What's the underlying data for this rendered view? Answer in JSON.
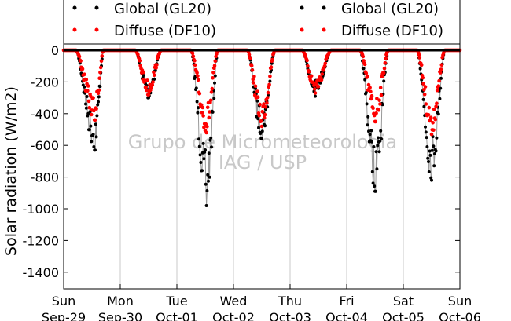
{
  "chart_data": {
    "type": "scatter",
    "title": "",
    "xlabel": "",
    "ylabel": "Solar radiation (W/m2)",
    "ylim": [
      -1500,
      0
    ],
    "y_ticks": [
      0,
      -200,
      -400,
      -600,
      -800,
      -1000,
      -1200,
      -1400
    ],
    "x_ticks": [
      {
        "day": "Sun",
        "date": "Sep-29"
      },
      {
        "day": "Mon",
        "date": "Sep-30"
      },
      {
        "day": "Tue",
        "date": "Oct-01"
      },
      {
        "day": "Wed",
        "date": "Oct-02"
      },
      {
        "day": "Thu",
        "date": "Oct-03"
      },
      {
        "day": "Fri",
        "date": "Oct-04"
      },
      {
        "day": "Sat",
        "date": "Oct-05"
      },
      {
        "day": "Sun",
        "date": "Oct-06"
      }
    ],
    "grid": "vertical",
    "legend_position": "top",
    "series": [
      {
        "name": "Global (GL20)",
        "color": "#000000",
        "daily_minimum": [
          -630,
          -300,
          -980,
          -560,
          -290,
          -890,
          -820
        ]
      },
      {
        "name": "Diffuse (DF10)",
        "color": "#ff0000",
        "daily_minimum": [
          -440,
          -280,
          -520,
          -480,
          -270,
          -450,
          -530
        ]
      }
    ],
    "watermark": [
      "Grupo de Micrometeorologia",
      "IAG / USP"
    ]
  }
}
